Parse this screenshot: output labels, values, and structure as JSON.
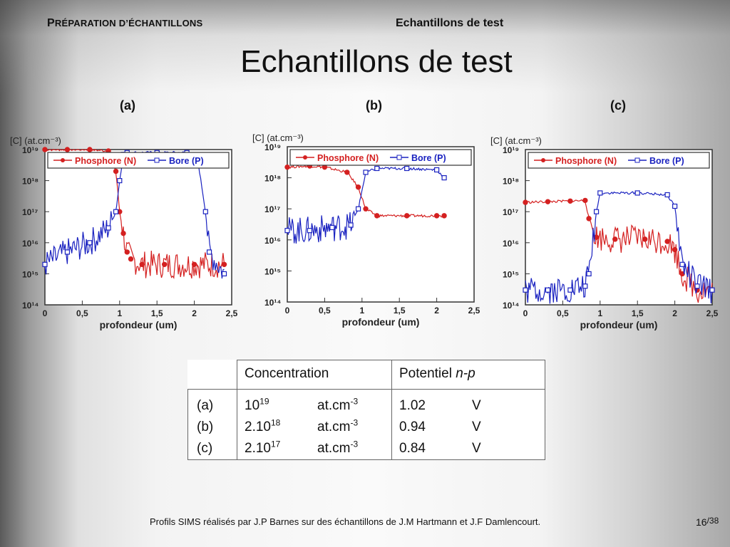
{
  "header": {
    "section_first": "P",
    "section_rest": "RÉPARATION D’ÉCHANTILLONS",
    "title": "Echantillons de test"
  },
  "slide_title": "Echantillons de test",
  "panel_labels": [
    "(a)",
    "(b)",
    "(c)"
  ],
  "chart_data": [
    {
      "type": "line",
      "panel": "(a)",
      "ylabel": "[C] (at.cm⁻³)",
      "xlabel": "profondeur (um)",
      "y_scale": "log",
      "ylim": [
        100000000000000.0,
        1e+19
      ],
      "xlim": [
        0,
        2.5
      ],
      "x_ticks": [
        "0",
        "0,5",
        "1",
        "1,5",
        "2",
        "2,5"
      ],
      "y_ticks": [
        "10¹⁹",
        "10¹⁸",
        "10¹⁷",
        "10¹⁶",
        "10¹⁵",
        "10¹⁴"
      ],
      "legend_position": "top",
      "series": [
        {
          "name": "Phosphore (N)",
          "color": "#d42020",
          "marker": "filled-circle",
          "x": [
            0,
            0.3,
            0.6,
            0.85,
            0.95,
            1.0,
            1.05,
            1.1,
            1.15,
            1.3,
            1.6,
            2.0,
            2.4
          ],
          "y": [
            1e+19,
            1e+19,
            1e+19,
            9e+18,
            2e+18,
            1e+17,
            2e+16,
            5000000000000000.0,
            3000000000000000.0,
            2000000000000000.0,
            2000000000000000.0,
            2000000000000000.0,
            2000000000000000.0
          ]
        },
        {
          "name": "Bore (P)",
          "color": "#1a22c0",
          "marker": "open-square",
          "x": [
            0,
            0.3,
            0.6,
            0.85,
            0.95,
            1.0,
            1.05,
            1.1,
            1.5,
            1.9,
            2.05,
            2.15,
            2.2,
            2.4
          ],
          "y": [
            2000000000000000.0,
            5000000000000000.0,
            1e+16,
            3e+16,
            1e+17,
            1e+18,
            7e+18,
            8e+18,
            8e+18,
            8e+18,
            4e+18,
            1e+17,
            5000000000000000.0,
            1000000000000000.0
          ]
        }
      ]
    },
    {
      "type": "line",
      "panel": "(b)",
      "ylabel": "[C] (at.cm⁻³)",
      "xlabel": "profondeur (um)",
      "y_scale": "log",
      "ylim": [
        100000000000000.0,
        1e+19
      ],
      "xlim": [
        0,
        2.5
      ],
      "x_ticks": [
        "0",
        "0,5",
        "1",
        "1,5",
        "2",
        "2,5"
      ],
      "y_ticks": [
        "10¹⁹",
        "10¹⁸",
        "10¹⁷",
        "10¹⁶",
        "10¹⁵",
        "10¹⁴"
      ],
      "legend_position": "top",
      "series": [
        {
          "name": "Phosphore (N)",
          "color": "#d42020",
          "marker": "filled-circle",
          "x": [
            0,
            0.3,
            0.5,
            0.8,
            0.95,
            1.05,
            1.2,
            1.6,
            2.0,
            2.1
          ],
          "y": [
            2.2e+18,
            2.4e+18,
            2.2e+18,
            1.5e+18,
            5e+17,
            1e+17,
            6e+16,
            6e+16,
            6e+16,
            6e+16
          ]
        },
        {
          "name": "Bore (P)",
          "color": "#1a22c0",
          "marker": "open-square",
          "x": [
            0,
            0.3,
            0.6,
            0.85,
            0.95,
            1.05,
            1.2,
            1.6,
            2.0,
            2.1
          ],
          "y": [
            2e+16,
            2e+16,
            2.5e+16,
            3e+16,
            1e+17,
            1.5e+18,
            2e+18,
            2e+18,
            1.8e+18,
            1e+18
          ]
        }
      ]
    },
    {
      "type": "line",
      "panel": "(c)",
      "ylabel": "[C] (at.cm⁻³)",
      "xlabel": "profondeur (um)",
      "y_scale": "log",
      "ylim": [
        100000000000000.0,
        1e+19
      ],
      "xlim": [
        0,
        2.5
      ],
      "x_ticks": [
        "0",
        "0,5",
        "1",
        "1,5",
        "2",
        "2,5"
      ],
      "y_ticks": [
        "10¹⁹",
        "10¹⁸",
        "10¹⁷",
        "10¹⁶",
        "10¹⁵",
        "10¹⁴"
      ],
      "legend_position": "top",
      "series": [
        {
          "name": "Phosphore (N)",
          "color": "#d42020",
          "marker": "filled-circle",
          "x": [
            0,
            0.3,
            0.6,
            0.8,
            0.85,
            0.95,
            1.2,
            1.6,
            1.9,
            2.0,
            2.1,
            2.3,
            2.5
          ],
          "y": [
            2e+17,
            2.1e+17,
            2.2e+17,
            2.3e+17,
            6e+16,
            1.5e+16,
            1.3e+16,
            1.3e+16,
            1.1e+16,
            6000000000000000.0,
            1000000000000000.0,
            300000000000000.0,
            300000000000000.0
          ]
        },
        {
          "name": "Bore (P)",
          "color": "#1a22c0",
          "marker": "open-square",
          "x": [
            0,
            0.3,
            0.6,
            0.8,
            0.85,
            0.95,
            1.0,
            1.5,
            1.9,
            2.0,
            2.1,
            2.3,
            2.5
          ],
          "y": [
            300000000000000.0,
            300000000000000.0,
            300000000000000.0,
            400000000000000.0,
            1000000000000000.0,
            1e+17,
            4e+17,
            4e+17,
            3.5e+17,
            1.5e+17,
            2000000000000000.0,
            400000000000000.0,
            300000000000000.0
          ]
        }
      ]
    }
  ],
  "table": {
    "headers": [
      "Concentration",
      "Potentiel"
    ],
    "header_italic": "n-p",
    "rows": [
      {
        "label": "(a)",
        "conc_base": "10",
        "conc_exp": "19",
        "conc_unit": "at.cm",
        "unit_exp": "-3",
        "pot": "1.02",
        "pot_unit": "V"
      },
      {
        "label": "(b)",
        "conc_base": "2.10",
        "conc_exp": "18",
        "conc_unit": "at.cm",
        "unit_exp": "-3",
        "pot": "0.94",
        "pot_unit": "V"
      },
      {
        "label": "(c)",
        "conc_base": "2.10",
        "conc_exp": "17",
        "conc_unit": "at.cm",
        "unit_exp": "-3",
        "pot": "0.84",
        "pot_unit": "V"
      }
    ]
  },
  "footer": {
    "text": "Profils SIMS réalisés par J.P Barnes sur des échantillons de J.M Hartmann et J.F Damlencourt.",
    "page": "16",
    "total": "/38"
  },
  "colors": {
    "phosphore": "#d42020",
    "bore": "#1a22c0"
  }
}
